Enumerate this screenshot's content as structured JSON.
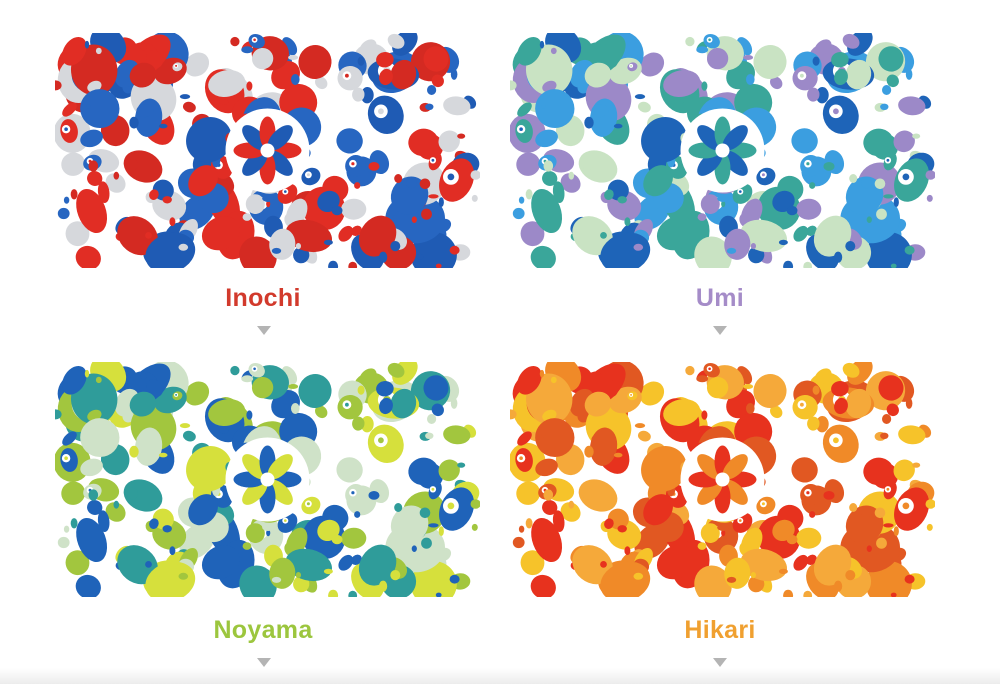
{
  "variants": [
    {
      "name": "Inochi",
      "name_color": "#d23a2c",
      "palette": [
        "#e12d24",
        "#1f5bb4",
        "#d6d8dc",
        "#d42a22",
        "#2766c1"
      ]
    },
    {
      "name": "Umi",
      "name_color": "#a58cc8",
      "palette": [
        "#3aa69a",
        "#1e64b8",
        "#9c89c8",
        "#c9e3c3",
        "#3b9ee0"
      ]
    },
    {
      "name": "Noyama",
      "name_color": "#9cc63e",
      "palette": [
        "#1f63b9",
        "#d6e03c",
        "#a2c63e",
        "#2f9c9a",
        "#cfe2c8"
      ]
    },
    {
      "name": "Hikari",
      "name_color": "#f0a030",
      "palette": [
        "#e7321e",
        "#f08a28",
        "#f6c32a",
        "#f5a93a",
        "#e15822"
      ]
    }
  ]
}
